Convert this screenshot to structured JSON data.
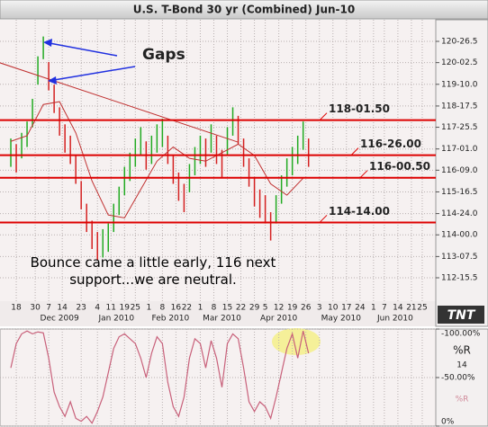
{
  "chart_data": [
    {
      "type": "ohlc",
      "title": "U.S. T-Bond 30 yr (Combined) Jun-10",
      "x": [
        0,
        2,
        4,
        6,
        8,
        10,
        12,
        14,
        16,
        18,
        20,
        22,
        24,
        26,
        28,
        30,
        32,
        34,
        36,
        38,
        40,
        42,
        44,
        46,
        48,
        50,
        52,
        54,
        56,
        58,
        60,
        62,
        64,
        66,
        68,
        70,
        72,
        74,
        76,
        78,
        80,
        82,
        84,
        86,
        88,
        90,
        92,
        94,
        96,
        98,
        100,
        102,
        104,
        106,
        108,
        110
      ],
      "high": [
        117.4,
        117.2,
        117.6,
        118.0,
        118.8,
        120.3,
        121.0,
        120.1,
        119.3,
        118.5,
        117.9,
        117.5,
        116.8,
        115.9,
        115.1,
        114.5,
        114.1,
        114.2,
        114.4,
        115.1,
        115.7,
        116.4,
        116.9,
        117.4,
        117.8,
        117.3,
        117.5,
        117.9,
        118.1,
        117.5,
        116.8,
        116.2,
        115.8,
        116.5,
        117.1,
        117.5,
        117.4,
        117.9,
        117.5,
        117.0,
        117.8,
        118.5,
        118.2,
        117.4,
        116.7,
        116.0,
        115.6,
        115.4,
        114.8,
        115.4,
        116.1,
        116.7,
        117.1,
        117.5,
        118.0,
        117.4
      ],
      "low": [
        116.4,
        116.2,
        116.7,
        117.1,
        117.8,
        119.3,
        120.2,
        119.1,
        118.3,
        117.5,
        116.9,
        116.5,
        115.8,
        114.9,
        114.1,
        113.5,
        113.1,
        113.2,
        113.4,
        114.1,
        114.7,
        115.4,
        115.9,
        116.4,
        116.8,
        116.3,
        116.5,
        116.9,
        117.1,
        116.5,
        115.8,
        115.2,
        114.8,
        115.5,
        116.1,
        116.5,
        116.4,
        116.9,
        116.5,
        116.0,
        116.8,
        117.5,
        117.2,
        116.4,
        115.7,
        115.0,
        114.6,
        114.4,
        113.8,
        114.4,
        115.1,
        115.7,
        116.1,
        116.5,
        117.0,
        116.4
      ],
      "up_color": "#22aa22",
      "down_color": "#d42020",
      "moving_average": {
        "color": "#c03030",
        "x": [
          0,
          6,
          12,
          18,
          24,
          30,
          36,
          42,
          48,
          54,
          60,
          66,
          72,
          78,
          84,
          90,
          96,
          102,
          108
        ],
        "values": [
          117.3,
          117.5,
          118.6,
          118.7,
          117.6,
          115.9,
          114.7,
          114.6,
          115.6,
          116.6,
          117.1,
          116.7,
          116.6,
          116.9,
          117.2,
          116.8,
          115.8,
          115.4,
          116.0
        ]
      },
      "trendline": {
        "color": "#c03030",
        "x": [
          -4,
          84
        ],
        "values": [
          120.07,
          117.27
        ]
      },
      "levels": [
        {
          "value": 118.047,
          "label": "118-01.50"
        },
        {
          "value": 116.8125,
          "label": "116-26.00"
        },
        {
          "value": 116.016,
          "label": "116-00.50"
        },
        {
          "value": 114.4375,
          "label": "114-14.00"
        }
      ],
      "level_color": "#dd0000",
      "annotations": {
        "gaps": "Gaps",
        "comment": "Bounce came a little early, 116 next support...we are neutral."
      },
      "logo": "TNT",
      "grid": true,
      "xlim": [
        -4,
        157
      ],
      "ylim": [
        111.66,
        121.59
      ],
      "yticks": [
        {
          "value": 120.828125,
          "label": "120-26.5"
        },
        {
          "value": 120.078125,
          "label": "120-02.5"
        },
        {
          "value": 119.3125,
          "label": "119-10.0"
        },
        {
          "value": 118.546875,
          "label": "118-17.5"
        },
        {
          "value": 117.796875,
          "label": "117-25.5"
        },
        {
          "value": 117.03125,
          "label": "117-01.0"
        },
        {
          "value": 116.28125,
          "label": "116-09.0"
        },
        {
          "value": 115.515625,
          "label": "115-16.5"
        },
        {
          "value": 114.75,
          "label": "114-24.0"
        },
        {
          "value": 114.0,
          "label": "114-00.0"
        },
        {
          "value": 113.234375,
          "label": "113-07.5"
        },
        {
          "value": 112.484375,
          "label": "112-15.5"
        }
      ],
      "xticks": [
        {
          "value": 2,
          "label": "18"
        },
        {
          "value": 9,
          "label": "30"
        },
        {
          "value": 14,
          "label": "7"
        },
        {
          "value": 19,
          "label": "14"
        },
        {
          "value": 26,
          "label": "23"
        },
        {
          "value": 32,
          "label": "4"
        },
        {
          "value": 37,
          "label": "11"
        },
        {
          "value": 42,
          "label": "19"
        },
        {
          "value": 46,
          "label": "25"
        },
        {
          "value": 51,
          "label": "1"
        },
        {
          "value": 56,
          "label": "8"
        },
        {
          "value": 61,
          "label": "16"
        },
        {
          "value": 65,
          "label": "22"
        },
        {
          "value": 70,
          "label": "1"
        },
        {
          "value": 75,
          "label": "8"
        },
        {
          "value": 80,
          "label": "15"
        },
        {
          "value": 85,
          "label": "22"
        },
        {
          "value": 90,
          "label": "29"
        },
        {
          "value": 94,
          "label": "5"
        },
        {
          "value": 99,
          "label": "12"
        },
        {
          "value": 104,
          "label": "19"
        },
        {
          "value": 109,
          "label": "26"
        },
        {
          "value": 114,
          "label": "3"
        },
        {
          "value": 119,
          "label": "10"
        },
        {
          "value": 124,
          "label": "17"
        },
        {
          "value": 129,
          "label": "24"
        },
        {
          "value": 134,
          "label": "1"
        },
        {
          "value": 138,
          "label": "7"
        },
        {
          "value": 143,
          "label": "14"
        },
        {
          "value": 148,
          "label": "21"
        },
        {
          "value": 152,
          "label": "25"
        }
      ],
      "month_ticks": [
        {
          "value": 18,
          "label": "Dec 2009"
        },
        {
          "value": 39,
          "label": "Jan 2010"
        },
        {
          "value": 59,
          "label": "Feb 2010"
        },
        {
          "value": 78,
          "label": "Mar 2010"
        },
        {
          "value": 99,
          "label": "Apr 2010"
        },
        {
          "value": 122,
          "label": "May 2010"
        },
        {
          "value": 142,
          "label": "Jun 2010"
        }
      ]
    },
    {
      "type": "line",
      "x": [
        0,
        2,
        4,
        6,
        8,
        10,
        12,
        14,
        16,
        18,
        20,
        22,
        24,
        26,
        28,
        30,
        32,
        34,
        36,
        38,
        40,
        42,
        44,
        46,
        48,
        50,
        52,
        54,
        56,
        58,
        60,
        62,
        64,
        66,
        68,
        70,
        72,
        74,
        76,
        78,
        80,
        82,
        84,
        86,
        88,
        90,
        92,
        94,
        96,
        98,
        100,
        102,
        104,
        106,
        108,
        110
      ],
      "series": [
        {
          "name": "%R",
          "color": "#c8607a",
          "values": [
            -60,
            -85,
            -95,
            -98,
            -95,
            -97,
            -96,
            -70,
            -35,
            -20,
            -10,
            -25,
            -8,
            -5,
            -10,
            -3,
            -15,
            -30,
            -55,
            -80,
            -92,
            -95,
            -90,
            -85,
            -70,
            -50,
            -75,
            -92,
            -85,
            -45,
            -20,
            -10,
            -30,
            -70,
            -90,
            -85,
            -60,
            -88,
            -70,
            -40,
            -85,
            -95,
            -90,
            -60,
            -25,
            -15,
            -25,
            -20,
            -8,
            -30,
            -55,
            -80,
            -95,
            -70,
            -98,
            -75
          ]
        }
      ],
      "period": "14",
      "xlim": [
        -4,
        157
      ],
      "ylim": [
        0,
        -100
      ],
      "yticks": [
        {
          "value": -100,
          "label": "-100.00%"
        },
        {
          "value": -50,
          "label": "-50.00%"
        },
        {
          "value": 0,
          "label": "0%"
        }
      ]
    }
  ]
}
